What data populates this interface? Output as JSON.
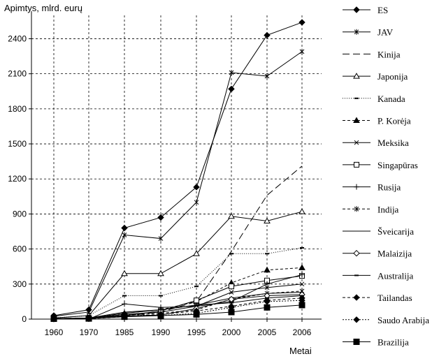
{
  "chart_data": {
    "type": "line",
    "ylabel": "Apimtys, mlrd. eurų",
    "xlabel": "Metai",
    "categories": [
      "1960",
      "1970",
      "1985",
      "1990",
      "1995",
      "2000",
      "2005",
      "2006"
    ],
    "ylim": [
      0,
      2600
    ],
    "yticks": [
      0,
      300,
      600,
      900,
      1200,
      1500,
      1800,
      2100,
      2400
    ],
    "grid": true,
    "legend_position": "right",
    "series": [
      {
        "name": "ES",
        "values": [
          30,
          80,
          780,
          870,
          1130,
          1970,
          2430,
          2540
        ],
        "dash": "",
        "marker": "diamond-filled"
      },
      {
        "name": "JAV",
        "values": [
          25,
          60,
          720,
          690,
          1000,
          2110,
          2080,
          2290
        ],
        "dash": "",
        "marker": "star"
      },
      {
        "name": "Kinija",
        "values": [
          5,
          10,
          30,
          60,
          150,
          580,
          1060,
          1310
        ],
        "dash": "10,5",
        "marker": "none"
      },
      {
        "name": "Japonija",
        "values": [
          10,
          30,
          390,
          390,
          560,
          880,
          840,
          920
        ],
        "dash": "",
        "marker": "triangle-open"
      },
      {
        "name": "Kanada",
        "values": [
          10,
          30,
          200,
          200,
          280,
          560,
          560,
          610
        ],
        "dash": "1,2",
        "marker": "dash"
      },
      {
        "name": "P. Korėja",
        "values": [
          2,
          5,
          50,
          80,
          150,
          310,
          420,
          440
        ],
        "dash": "4,3",
        "marker": "triangle-filled"
      },
      {
        "name": "Meksika",
        "values": [
          2,
          5,
          40,
          60,
          110,
          230,
          270,
          300
        ],
        "dash": "",
        "marker": "x"
      },
      {
        "name": "Singapūras",
        "values": [
          2,
          5,
          30,
          70,
          160,
          280,
          330,
          370
        ],
        "dash": "",
        "marker": "square-open"
      },
      {
        "name": "Rusija",
        "values": [
          0,
          0,
          130,
          100,
          110,
          150,
          300,
          380
        ],
        "dash": "",
        "marker": "plus"
      },
      {
        "name": "Indija",
        "values": [
          2,
          4,
          30,
          50,
          80,
          170,
          220,
          240
        ],
        "dash": "4,3",
        "marker": "star"
      },
      {
        "name": "Šveicarija",
        "values": [
          5,
          10,
          60,
          80,
          120,
          180,
          220,
          230
        ],
        "dash": "",
        "marker": "none"
      },
      {
        "name": "Malaizija",
        "values": [
          2,
          5,
          25,
          35,
          90,
          170,
          200,
          210
        ],
        "dash": "",
        "marker": "diamond-open"
      },
      {
        "name": "Australija",
        "values": [
          3,
          8,
          50,
          80,
          120,
          140,
          180,
          200
        ],
        "dash": "",
        "marker": "dash"
      },
      {
        "name": "Tailandas",
        "values": [
          1,
          3,
          20,
          40,
          70,
          110,
          160,
          180
        ],
        "dash": "4,3",
        "marker": "diamond-filled"
      },
      {
        "name": "Saudo Arabija",
        "values": [
          2,
          5,
          40,
          30,
          50,
          100,
          150,
          160
        ],
        "dash": "2,2",
        "marker": "diamond-filled"
      },
      {
        "name": "Brazilija",
        "values": [
          3,
          5,
          20,
          30,
          40,
          60,
          100,
          120
        ],
        "dash": "",
        "marker": "square-filled"
      }
    ]
  }
}
